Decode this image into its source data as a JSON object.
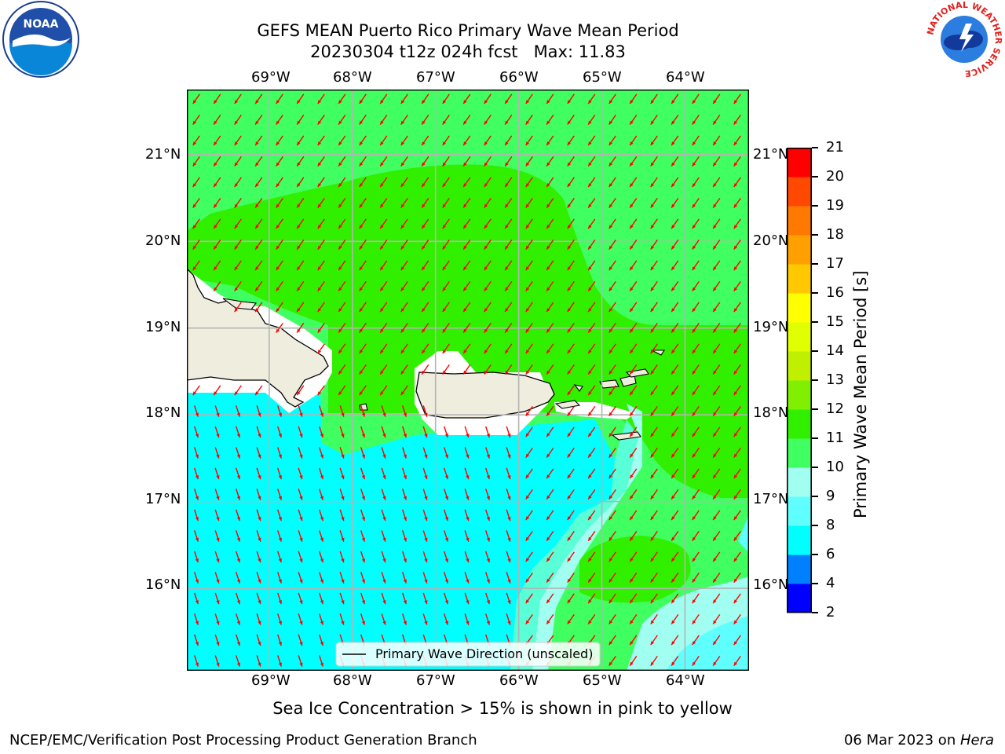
{
  "chart_data": {
    "type": "heatmap",
    "title_line1": "GEFS MEAN Puerto Rico Primary Wave Mean Period",
    "title_line2": "20230304 t12z 024h fcst   Max: 11.83",
    "x_ticks": [
      "69°W",
      "68°W",
      "67°W",
      "66°W",
      "65°W",
      "64°W"
    ],
    "x_tick_lon": [
      -69,
      -68,
      -67,
      -66,
      -65,
      -64
    ],
    "y_ticks": [
      "21°N",
      "20°N",
      "19°N",
      "18°N",
      "17°N",
      "16°N"
    ],
    "y_tick_lat": [
      21,
      20,
      19,
      18,
      17,
      16
    ],
    "lon_range": [
      -69.99,
      -63.23
    ],
    "lat_range": [
      15.05,
      21.75
    ],
    "grid": true,
    "legend_label": "Primary Wave Direction (unscaled)",
    "legend_placement": "bottom-center",
    "vector_direction": "from north-northeast",
    "vector_color": "#ff0000",
    "colorbar": {
      "label": "Primary Wave Mean Period [s]",
      "ticks": [
        "2",
        "4",
        "6",
        "8",
        "9",
        "10",
        "11",
        "12",
        "13",
        "14",
        "15",
        "16",
        "17",
        "18",
        "19",
        "20",
        "21"
      ],
      "levels": [
        2,
        4,
        6,
        8,
        9,
        10,
        11,
        12,
        13,
        14,
        15,
        16,
        17,
        18,
        19,
        20,
        21
      ],
      "colors": [
        "#0000ff",
        "#0080ff",
        "#00ffff",
        "#60ffff",
        "#a0fff0",
        "#40ff60",
        "#30f000",
        "#80f000",
        "#c0f000",
        "#e0ff00",
        "#ffff00",
        "#ffc800",
        "#ffa000",
        "#ff7800",
        "#ff4800",
        "#ff0000"
      ]
    },
    "annotation": "Sea Ice Concentration > 15% is shown in pink to yellow"
  },
  "footer": {
    "left": "NCEP/EMC/Verification Post Processing Product Generation Branch",
    "right_prefix": "06 Mar 2023 on ",
    "right_host": "Hera"
  },
  "logos": {
    "noaa": "NOAA",
    "nws_text": "NATIONAL WEATHER SERVICE"
  },
  "colors": {
    "land": "#efedde",
    "water_cyan": "#00ffff",
    "water_green_light": "#40ff60",
    "water_green": "#30f000",
    "water_lightcyan": "#a0fff0"
  }
}
